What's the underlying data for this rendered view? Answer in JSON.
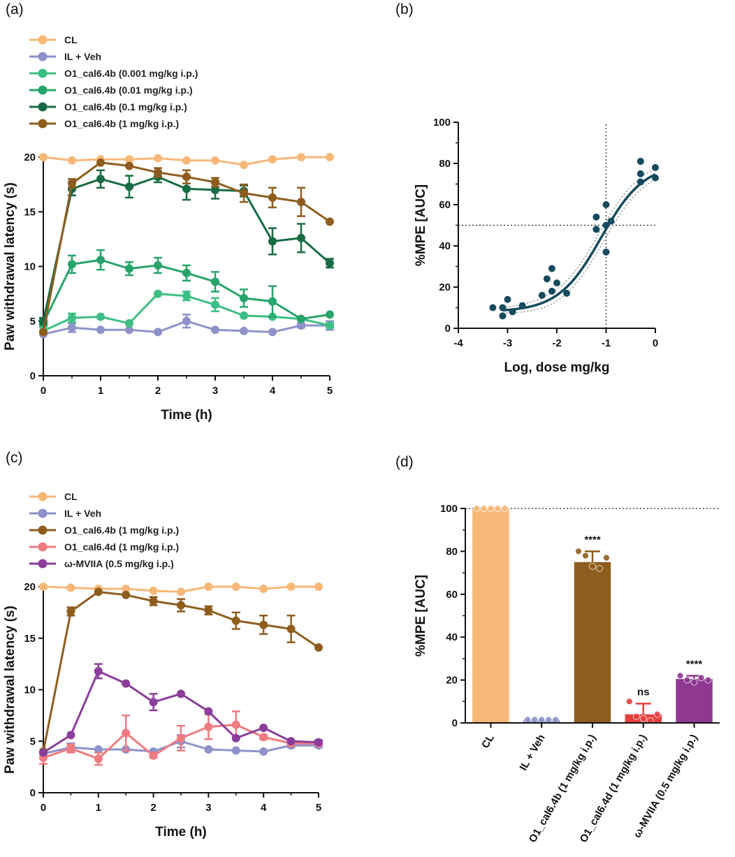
{
  "panel_labels": {
    "a": "(a)",
    "b": "(b)",
    "c": "(c)",
    "d": "(d)"
  },
  "colors": {
    "CL": "#f7b877",
    "IL": "#8e92c9",
    "d0001": "#3cbf84",
    "d001": "#27a46a",
    "d01": "#176b43",
    "d1": "#8e5d1e",
    "O1d": "#ef7b80",
    "MVIIA": "#8b3e9a",
    "fit": "#154b5e",
    "bar_O1d": "#e5403e",
    "bar_MVIIA": "#8e3892"
  },
  "chart_data": [
    {
      "id": "a",
      "type": "line",
      "xlabel": "Time (h)",
      "ylabel": "Paw withdrawal latency (s)",
      "xlim": [
        0,
        5
      ],
      "ylim": [
        0,
        20
      ],
      "xticks": [
        "0",
        "1",
        "2",
        "3",
        "4",
        "5"
      ],
      "yticks": [
        "0",
        "5",
        "10",
        "15",
        "20"
      ],
      "x": [
        0,
        0.5,
        1,
        1.5,
        2,
        2.5,
        3,
        3.5,
        4,
        4.5,
        5
      ],
      "series": [
        {
          "name": "CL",
          "color_key": "CL",
          "values": [
            20,
            19.7,
            19.8,
            19.8,
            19.9,
            19.7,
            19.7,
            19.3,
            19.8,
            20,
            20
          ],
          "err": [
            0,
            0,
            0,
            0,
            0,
            0,
            0,
            0,
            0,
            0,
            0
          ]
        },
        {
          "name": "IL + Veh",
          "color_key": "IL",
          "values": [
            3.8,
            4.4,
            4.2,
            4.2,
            4.0,
            5.0,
            4.2,
            4.1,
            4.0,
            4.6,
            4.6
          ],
          "err": [
            0.1,
            0.4,
            0.1,
            0.1,
            0.1,
            0.6,
            0.1,
            0.1,
            0.1,
            0.2,
            0.4
          ]
        },
        {
          "name": "O1_cal6.4b (0.001 mg/kg i.p.)",
          "color_key": "d0001",
          "values": [
            4.1,
            5.3,
            5.4,
            4.8,
            7.5,
            7.3,
            6.5,
            5.5,
            5.4,
            5.2,
            4.6
          ],
          "err": [
            0.1,
            0.4,
            0.1,
            0.1,
            0.1,
            0.4,
            0.6,
            0.1,
            0.1,
            0.1,
            0.2
          ]
        },
        {
          "name": "O1_cal6.4b (0.01 mg/kg i.p.)",
          "color_key": "d001",
          "values": [
            4.8,
            10.2,
            10.6,
            9.8,
            10.1,
            9.4,
            8.6,
            7.1,
            6.8,
            5.2,
            5.6
          ],
          "err": [
            0.3,
            0.8,
            0.9,
            0.6,
            0.7,
            0.7,
            0.9,
            0.8,
            1.4,
            0.1,
            0.1
          ]
        },
        {
          "name": "O1_cal6.4b (0.1 mg/kg i.p.)",
          "color_key": "d01",
          "values": [
            5.0,
            17.1,
            18.0,
            17.3,
            18.2,
            17.1,
            17.0,
            16.9,
            12.3,
            12.6,
            10.3
          ],
          "err": [
            0.3,
            0.6,
            0.8,
            1.0,
            0.5,
            1.0,
            0.8,
            0.5,
            1.2,
            1.3,
            0.4
          ]
        },
        {
          "name": "O1_cal6.4b (1 mg/kg i.p.)",
          "color_key": "d1",
          "values": [
            4.0,
            17.6,
            19.5,
            19.2,
            18.6,
            18.2,
            17.7,
            16.7,
            16.3,
            15.9,
            14.1
          ],
          "err": [
            0.1,
            0.4,
            0.1,
            0.1,
            0.4,
            0.6,
            0.4,
            0.8,
            0.9,
            1.3,
            0.1
          ]
        }
      ],
      "legend": "top-left"
    },
    {
      "id": "b",
      "type": "scatter",
      "xlabel": "Log, dose mg/kg",
      "ylabel": "%MPE [AUC]",
      "xlim": [
        -4,
        0
      ],
      "ylim": [
        0,
        100
      ],
      "xticks": [
        "-4",
        "-3",
        "-2",
        "-1",
        "0"
      ],
      "yticks": [
        "0",
        "20",
        "40",
        "60",
        "80",
        "100"
      ],
      "points": [
        [
          -3.3,
          10
        ],
        [
          -3.1,
          10
        ],
        [
          -3.1,
          6
        ],
        [
          -3.0,
          14
        ],
        [
          -2.9,
          8
        ],
        [
          -2.7,
          11
        ],
        [
          -2.3,
          16
        ],
        [
          -2.2,
          24
        ],
        [
          -2.1,
          29
        ],
        [
          -2.1,
          18
        ],
        [
          -2.0,
          22
        ],
        [
          -1.8,
          17
        ],
        [
          -1.2,
          54
        ],
        [
          -1.2,
          48
        ],
        [
          -1.0,
          60
        ],
        [
          -1.0,
          37
        ],
        [
          -1.0,
          50
        ],
        [
          -0.9,
          52
        ],
        [
          -0.3,
          81
        ],
        [
          -0.3,
          71
        ],
        [
          -0.3,
          75
        ],
        [
          0,
          78
        ],
        [
          0,
          73
        ]
      ],
      "fit": {
        "bottom": 8,
        "top": 80,
        "logEC50": -1.1,
        "hill": 1.0,
        "ci_width": 4
      },
      "ref_lines": {
        "y": 50,
        "x": -1
      }
    },
    {
      "id": "c",
      "type": "line",
      "xlabel": "Time (h)",
      "ylabel": "Paw withdrawal latency (s)",
      "xlim": [
        0,
        5
      ],
      "ylim": [
        0,
        20
      ],
      "xticks": [
        "0",
        "1",
        "2",
        "3",
        "4",
        "5"
      ],
      "yticks": [
        "0",
        "5",
        "10",
        "15",
        "20"
      ],
      "x": [
        0,
        0.5,
        1,
        1.5,
        2,
        2.5,
        3,
        3.5,
        4,
        4.5,
        5
      ],
      "series": [
        {
          "name": "CL",
          "color_key": "CL",
          "values": [
            20,
            19.9,
            19.8,
            19.8,
            19.6,
            19.5,
            20,
            20,
            19.8,
            20,
            20
          ],
          "err": [
            0,
            0,
            0,
            0,
            0,
            0,
            0,
            0,
            0,
            0,
            0
          ]
        },
        {
          "name": "IL + Veh",
          "color_key": "IL",
          "values": [
            3.8,
            4.4,
            4.2,
            4.2,
            4.0,
            5.0,
            4.2,
            4.1,
            4.0,
            4.6,
            4.6
          ],
          "err": [
            0.1,
            0.4,
            0.1,
            0.1,
            0.1,
            0.6,
            0.1,
            0.1,
            0.1,
            0.2,
            0.2
          ]
        },
        {
          "name": "O1_cal6.4b (1 mg/kg i.p.)",
          "color_key": "d1",
          "values": [
            4.0,
            17.6,
            19.5,
            19.2,
            18.6,
            18.2,
            17.7,
            16.7,
            16.3,
            15.9,
            14.1
          ],
          "err": [
            0.1,
            0.4,
            0.1,
            0.1,
            0.4,
            0.6,
            0.4,
            0.8,
            0.9,
            1.3,
            0.1
          ]
        },
        {
          "name": "O1_cal6.4d (1 mg/kg i.p.)",
          "color_key": "O1d",
          "values": [
            3.4,
            4.3,
            3.3,
            5.8,
            3.6,
            5.3,
            6.4,
            6.6,
            5.4,
            4.8,
            4.8
          ],
          "err": [
            0.6,
            0.4,
            0.6,
            1.7,
            0.2,
            1.2,
            1.2,
            1.3,
            0.2,
            0.2,
            0.2
          ]
        },
        {
          "name": "ω-MVIIA (0.5 mg/kg i.p.)",
          "color_key": "MVIIA",
          "values": [
            3.9,
            5.6,
            11.8,
            10.6,
            8.8,
            9.6,
            7.9,
            5.3,
            6.3,
            5.0,
            4.9
          ],
          "err": [
            0.1,
            0.1,
            0.7,
            0.1,
            0.8,
            0.1,
            0.1,
            0.1,
            0.1,
            0.1,
            0.2
          ]
        }
      ],
      "legend": "top-left"
    },
    {
      "id": "d",
      "type": "bar",
      "ylabel": "%MPE [AUC]",
      "ylim": [
        0,
        100
      ],
      "yticks": [
        "0",
        "20",
        "40",
        "60",
        "80",
        "100"
      ],
      "categories": [
        "CL",
        "IL + Veh",
        "O1_cal6.4b (1 mg/kg i.p.)",
        "O1_cal6.4d (1 mg/kg i.p.)",
        "ω-MVIIA (0.5 mg/kg i.p.)"
      ],
      "values": [
        100,
        1.5,
        75,
        4,
        20.5
      ],
      "err": [
        0,
        0,
        5,
        5,
        1.5
      ],
      "color_keys": [
        "CL",
        "IL",
        "d1",
        "bar_O1d",
        "bar_MVIIA"
      ],
      "points": [
        [
          100,
          100,
          100,
          100,
          100
        ],
        [
          1.5,
          1.5,
          1.5,
          1.5,
          1.5
        ],
        [
          80,
          78,
          73,
          72,
          77
        ],
        [
          10,
          3,
          2,
          1,
          4
        ],
        [
          22,
          20,
          19,
          21,
          20
        ]
      ],
      "annotations": [
        "",
        "",
        "****",
        "ns",
        "****"
      ],
      "ref_line": 100
    }
  ]
}
